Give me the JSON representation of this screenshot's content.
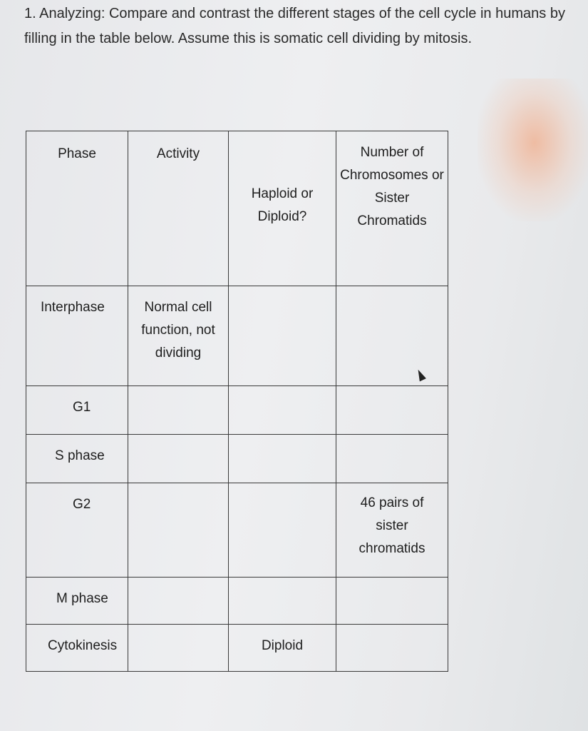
{
  "question": "1. Analyzing: Compare and contrast the different stages of the cell cycle in humans by filling in the table below. Assume this is somatic cell dividing by mitosis.",
  "table": {
    "headers": [
      "Phase",
      "Activity",
      "Haploid or Diploid?",
      "Number of Chromosomes or Sister Chromatids"
    ],
    "rows": [
      [
        "Interphase",
        "Normal cell function, not dividing",
        "",
        ""
      ],
      [
        "G1",
        "",
        "",
        ""
      ],
      [
        "S phase",
        "",
        "",
        ""
      ],
      [
        "G2",
        "",
        "",
        "46 pairs of sister chromatids"
      ],
      [
        "M phase",
        "",
        "",
        ""
      ],
      [
        "Cytokinesis",
        "",
        "Diploid",
        ""
      ]
    ]
  }
}
